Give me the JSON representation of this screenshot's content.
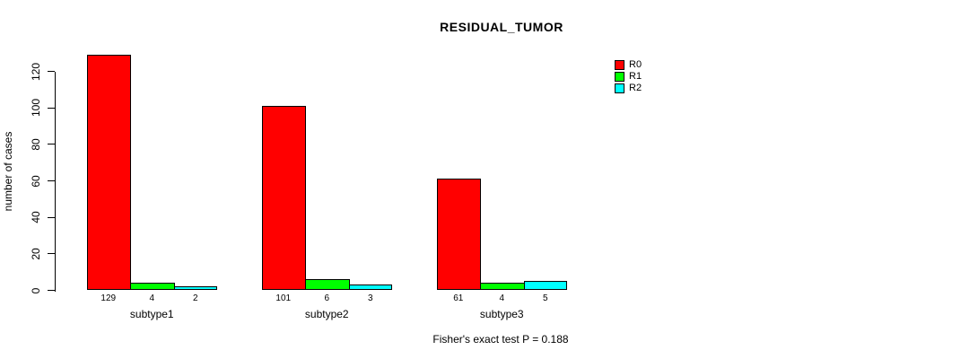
{
  "title": "RESIDUAL_TUMOR",
  "footnote": "Fisher's exact test P = 0.188",
  "chart_data": {
    "type": "bar",
    "grouped": true,
    "categories": [
      "subtype1",
      "subtype2",
      "subtype3"
    ],
    "series": [
      {
        "name": "R0",
        "color": "#ff0000",
        "values": [
          129,
          101,
          61
        ]
      },
      {
        "name": "R1",
        "color": "#00ff00",
        "values": [
          4,
          6,
          4
        ]
      },
      {
        "name": "R2",
        "color": "#00ffff",
        "values": [
          2,
          3,
          5
        ]
      }
    ],
    "ylabel": "number of cases",
    "xlabel": "",
    "ylim": [
      0,
      120
    ],
    "yticks": [
      0,
      20,
      40,
      60,
      80,
      100,
      120
    ],
    "grid": false,
    "bar_value_labels_shown": true,
    "legend_position": "top-right",
    "background_color": "#ffffff",
    "axis_color": "#000000"
  }
}
